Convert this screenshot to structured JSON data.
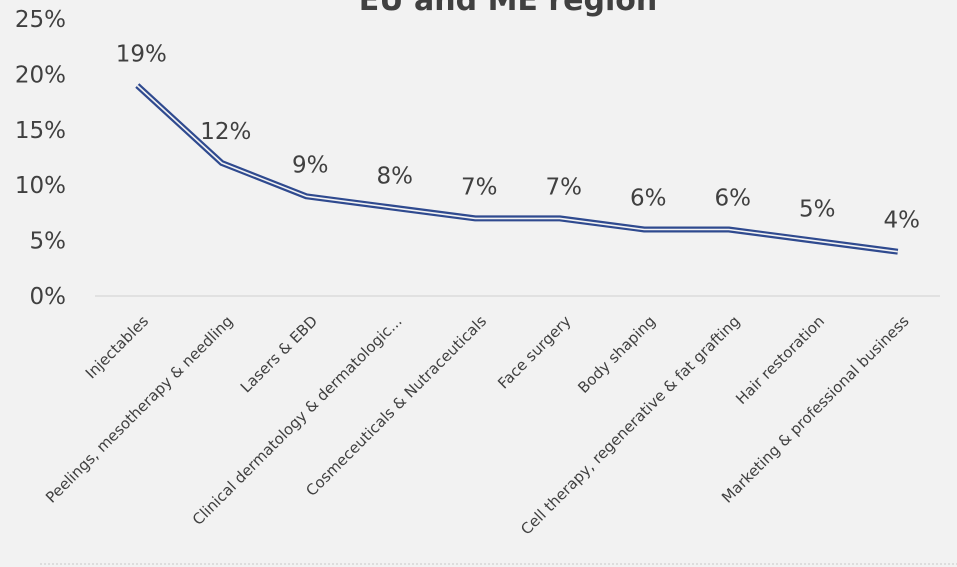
{
  "chart_data": {
    "type": "line",
    "title": "EU and ME region",
    "categories": [
      "Injectables",
      "Peelings, mesotherapy & needling",
      "Lasers & EBD",
      "Clinical dermatology & dermatologic...",
      "Cosmeceuticals & Nutraceuticals",
      "Face surgery",
      "Body shaping",
      "Cell therapy, regenerative & fat grafting",
      "Hair restoration",
      "Marketing & professional business"
    ],
    "series": [
      {
        "values": [
          19,
          12,
          9,
          8,
          7,
          7,
          6,
          6,
          5,
          4
        ]
      }
    ],
    "data_labels": [
      "19%",
      "12%",
      "9%",
      "8%",
      "7%",
      "7%",
      "6%",
      "6%",
      "5%",
      "4%"
    ],
    "y_ticks": [
      "0%",
      "5%",
      "10%",
      "15%",
      "20%",
      "25%"
    ],
    "ylim": [
      0,
      25
    ],
    "line_color": "#2f4a8f",
    "grid": false
  }
}
